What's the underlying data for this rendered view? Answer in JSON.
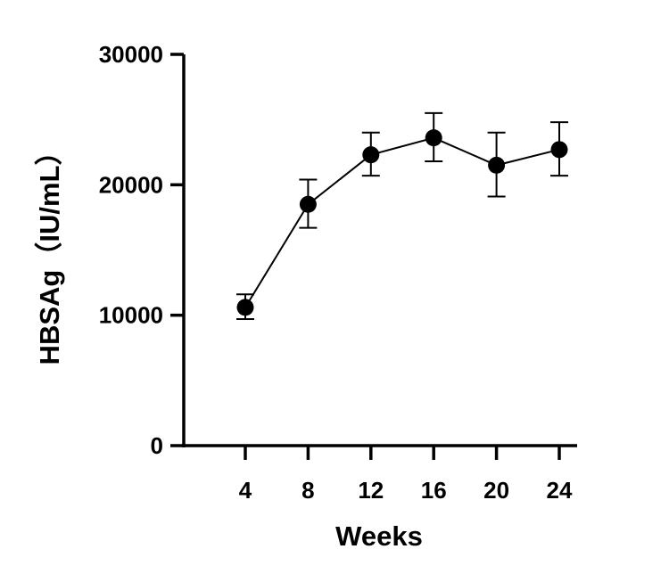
{
  "chart_data": {
    "type": "line",
    "xlabel": "Weeks",
    "ylabel": "HBSAg（IU/mL）",
    "x": [
      4,
      8,
      12,
      16,
      20,
      24
    ],
    "xticks": [
      "4",
      "8",
      "12",
      "16",
      "20",
      "24"
    ],
    "yticks": [
      "0",
      "10000",
      "20000",
      "30000"
    ],
    "ylim": [
      0,
      30000
    ],
    "grid": false,
    "series": [
      {
        "values": [
          10600,
          18500,
          22300,
          23600,
          21500,
          22700
        ],
        "error_low": [
          9700,
          16700,
          20700,
          21800,
          19100,
          20700
        ],
        "error_high": [
          11600,
          20400,
          24000,
          25500,
          24000,
          24800
        ],
        "color": "#000000",
        "marker": "filled-circle"
      }
    ]
  }
}
